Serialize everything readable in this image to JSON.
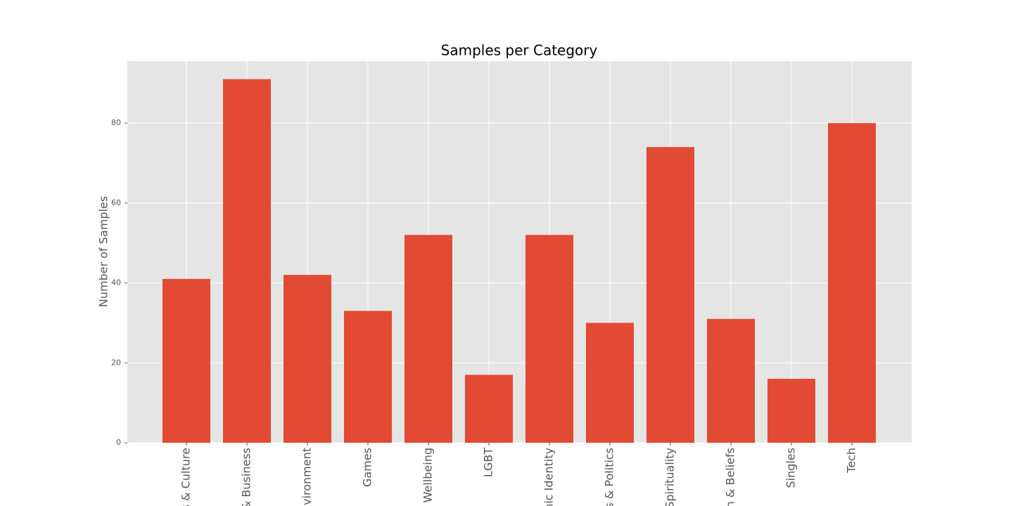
{
  "chart_data": {
    "type": "bar",
    "title": "Samples per Category",
    "ylabel": "Number of Samples",
    "categories": [
      "s & Culture",
      "& Business",
      "nvironment",
      "Games",
      "Wellbeing",
      "LGBT",
      "nic Identity",
      "s & Politics",
      "Spirituality",
      "n & Beliefs",
      "Singles",
      "Tech"
    ],
    "values": [
      41,
      91,
      42,
      33,
      52,
      17,
      52,
      30,
      74,
      31,
      16,
      80
    ],
    "color": "#e24a33",
    "ylim": [
      0,
      95.5
    ],
    "yticks": [
      0,
      20,
      40,
      60,
      80
    ],
    "grid": true
  }
}
